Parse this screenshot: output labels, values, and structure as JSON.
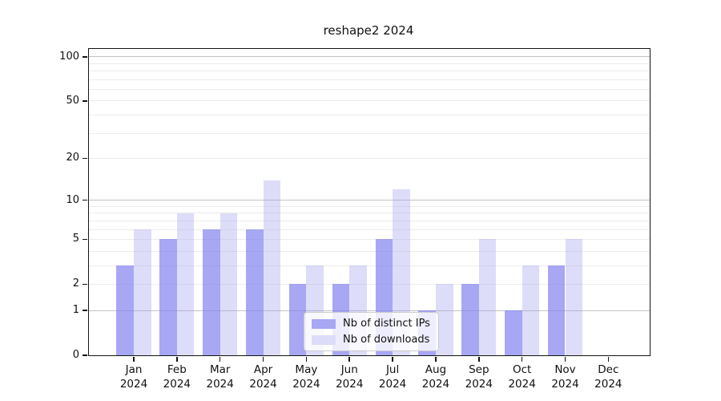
{
  "title": "reshape2 2024",
  "chart_data": {
    "type": "bar",
    "title": "reshape2 2024",
    "categories": [
      "Jan 2024",
      "Feb 2024",
      "Mar 2024",
      "Apr 2024",
      "May 2024",
      "Jun 2024",
      "Jul 2024",
      "Aug 2024",
      "Sep 2024",
      "Oct 2024",
      "Nov 2024",
      "Dec 2024"
    ],
    "x_months": [
      "Jan",
      "Feb",
      "Mar",
      "Apr",
      "May",
      "Jun",
      "Jul",
      "Aug",
      "Sep",
      "Oct",
      "Nov",
      "Dec"
    ],
    "x_year": "2024",
    "series": [
      {
        "name": "Nb of distinct IPs",
        "color": "rgba(122,122,238,0.66)",
        "solid_color": "#a7a7f4",
        "values": [
          3,
          5,
          6,
          6,
          2,
          2,
          5,
          1,
          2,
          1,
          3,
          0
        ]
      },
      {
        "name": "Nb of downloads",
        "color": "rgba(160,160,238,0.36)",
        "solid_color": "#ddddf9",
        "values": [
          6,
          8,
          8,
          14,
          3,
          3,
          12,
          2,
          5,
          3,
          5,
          0
        ]
      }
    ],
    "xlabel": "",
    "ylabel": "",
    "yscale": "log1p",
    "ylim": [
      0,
      113
    ],
    "ytick_values": [
      0,
      1,
      2,
      5,
      10,
      20,
      50,
      100
    ],
    "major_gridlines": [
      1,
      10,
      100
    ],
    "minor_gridlines": [
      2,
      3,
      4,
      5,
      6,
      7,
      8,
      9,
      20,
      30,
      40,
      50,
      60,
      70,
      80,
      90
    ],
    "grid": "on",
    "legend_position": "lower center",
    "colors": {
      "spine": "#141414",
      "major_grid": "#c3c3c3",
      "minor_grid": "#ececec",
      "background": "#ffffff"
    }
  }
}
